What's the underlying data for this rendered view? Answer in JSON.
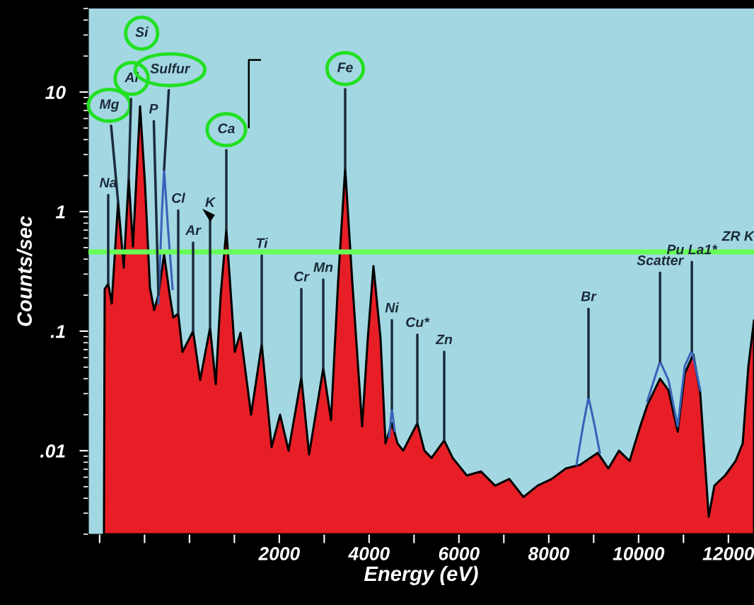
{
  "chart_data": {
    "type": "area",
    "xlabel": "Energy (eV)",
    "ylabel": "Counts/sec",
    "log": "y",
    "xlim": [
      -2250,
      12570
    ],
    "ylim": [
      0.002,
      50
    ],
    "xticks": [
      {
        "value": -2000,
        "label": null
      },
      {
        "value": -1000,
        "label": null
      },
      {
        "value": 0,
        "label": null
      },
      {
        "value": 1000,
        "label": null
      },
      2000,
      {
        "value": 3000,
        "label": null
      },
      4000,
      {
        "value": 5000,
        "label": null
      },
      6000,
      {
        "value": 7000,
        "label": null
      },
      8000,
      {
        "value": 9000,
        "label": null
      },
      10000,
      {
        "value": 11000,
        "label": null
      },
      12000
    ],
    "yticks": [
      {
        "value": 0.01,
        "label": ".01"
      },
      {
        "value": 0.1,
        "label": ".1"
      },
      1,
      10
    ],
    "series": [
      {
        "color": "#e81e26",
        "x": [
          -1904,
          -1888,
          -1809,
          -1731,
          -1589,
          -1463,
          -1353,
          -1258,
          -1100,
          -990,
          -880,
          -786,
          -691,
          -565,
          -439,
          -360,
          -250,
          -155,
          81,
          238,
          459,
          585,
          695,
          821,
          1010,
          1136,
          1372,
          1609,
          1829,
          2018,
          2207,
          2491,
          2664,
          2979,
          3152,
          3310,
          3467,
          3625,
          3845,
          3971,
          4097,
          4254,
          4365,
          4507,
          4633,
          4759,
          5074,
          5231,
          5389,
          5672,
          5861,
          6176,
          6491,
          6806,
          7121,
          7436,
          7751,
          8066,
          8381,
          8696,
          9090,
          9327,
          9563,
          9800,
          10036,
          10194,
          10478,
          10666,
          10871,
          11028,
          11217,
          11374,
          11562,
          11688,
          11925,
          12161,
          12319,
          12445,
          12570
        ],
        "values": [
          0.0021,
          0.225,
          0.25,
          0.17,
          1.2,
          0.34,
          1.9,
          0.51,
          7.6,
          1.7,
          0.23,
          0.15,
          0.2,
          0.44,
          0.2,
          0.13,
          0.14,
          0.067,
          0.1,
          0.039,
          0.107,
          0.036,
          0.2,
          0.71,
          0.067,
          0.097,
          0.02,
          0.078,
          0.0107,
          0.02,
          0.01,
          0.041,
          0.0093,
          0.049,
          0.018,
          0.26,
          2.3,
          0.26,
          0.016,
          0.087,
          0.35,
          0.087,
          0.0115,
          0.017,
          0.0115,
          0.01,
          0.017,
          0.01,
          0.0087,
          0.0122,
          0.0087,
          0.0062,
          0.0067,
          0.0051,
          0.0058,
          0.0041,
          0.0051,
          0.0058,
          0.0071,
          0.0076,
          0.0096,
          0.0071,
          0.01,
          0.0082,
          0.016,
          0.024,
          0.04,
          0.032,
          0.0144,
          0.044,
          0.064,
          0.03,
          0.0028,
          0.0051,
          0.0062,
          0.0082,
          0.0115,
          0.051,
          0.123
        ]
      },
      {
        "type": "line",
        "color": "#3a62b8",
        "x": [
          -691,
          -613,
          -565,
          -471,
          -376,
          0,
          4444,
          4507,
          4570,
          7000,
          8617,
          8775,
          8885,
          9011,
          9137,
          9500,
          10194,
          10478,
          10666,
          10871,
          11028,
          11186,
          11374
        ],
        "values": [
          0.17,
          1.0,
          2.25,
          0.67,
          0.225,
          null,
          0.013,
          0.0225,
          0.0146,
          null,
          0.0076,
          0.017,
          0.028,
          0.017,
          0.0096,
          null,
          0.026,
          0.056,
          0.039,
          0.016,
          0.051,
          0.069,
          0.032
        ]
      }
    ],
    "ref_lines": [
      {
        "axis": "y",
        "value": 0.46,
        "color": "#66ff55"
      }
    ],
    "annotations": [
      "Si",
      {
        "text": "Na",
        "x": -1809,
        "y": 0.25
      },
      {
        "text": "Mg",
        "x": -1589,
        "y": 1.2
      },
      {
        "text": "Al",
        "x": -1353,
        "y": 1.9
      },
      {
        "text": "P",
        "x": -691,
        "y": 0.2
      },
      {
        "text": "Sulfur",
        "x": -565,
        "y": 2.25
      },
      {
        "text": "Cl",
        "x": -250,
        "y": 0.14
      },
      {
        "text": "Ar",
        "x": 81,
        "y": 0.1
      },
      {
        "text": "K",
        "x": 459,
        "y": 0.107
      },
      {
        "text": "Ca",
        "x": 821,
        "y": 0.71
      },
      {
        "text": "Ti",
        "x": 1609,
        "y": 0.078
      },
      {
        "text": "Cr",
        "x": 2491,
        "y": 0.041
      },
      {
        "text": "Mn",
        "x": 2979,
        "y": 0.049
      },
      {
        "text": "Fe",
        "x": 3467,
        "y": 2.3
      },
      {
        "text": "Ni",
        "x": 4507,
        "y": 0.0225
      },
      {
        "text": "Cu*",
        "x": 5074,
        "y": 0.017
      },
      {
        "text": "Zn",
        "x": 5672,
        "y": 0.0122
      },
      {
        "text": "Br",
        "x": 8885,
        "y": 0.028
      },
      {
        "text": "Scatter",
        "x": 10478,
        "y": 0.056
      },
      {
        "text": "Pu La1*",
        "x": 11186,
        "y": 0.069
      },
      "ZR K"
    ]
  }
}
